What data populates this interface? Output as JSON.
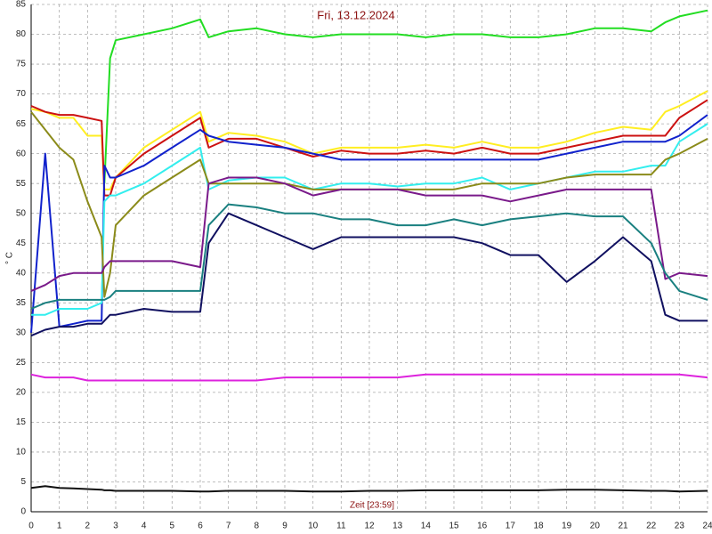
{
  "chart_data": {
    "type": "line",
    "title": "Fri, 13.12.2024",
    "x_label": "Zeit [23:59]",
    "y_label": "° C",
    "xlim": [
      0,
      24
    ],
    "ylim": [
      0,
      85
    ],
    "xticks": [
      0,
      1,
      2,
      3,
      4,
      5,
      6,
      7,
      8,
      9,
      10,
      11,
      12,
      13,
      14,
      15,
      16,
      17,
      18,
      19,
      20,
      21,
      22,
      23,
      24
    ],
    "yticks": [
      0,
      5,
      10,
      15,
      20,
      25,
      30,
      35,
      40,
      45,
      50,
      55,
      60,
      65,
      70,
      75,
      80,
      85
    ],
    "grid": true,
    "x": [
      0,
      0.5,
      1,
      1.5,
      2,
      2.5,
      2.6,
      2.8,
      3,
      4,
      5,
      6,
      6.3,
      7,
      8,
      9,
      10,
      11,
      12,
      13,
      14,
      15,
      16,
      17,
      18,
      19,
      20,
      21,
      22,
      22.5,
      23,
      24
    ],
    "series": [
      {
        "color": "#22dd22",
        "values": [
          null,
          null,
          null,
          null,
          null,
          null,
          55,
          76,
          79,
          80,
          81,
          82.5,
          79.5,
          80.5,
          81,
          80,
          79.5,
          80,
          80,
          80,
          79.5,
          80,
          80,
          79.5,
          79.5,
          80,
          81,
          81,
          80.5,
          82,
          83,
          84
        ]
      },
      {
        "color": "#ffee22",
        "values": [
          67.5,
          67,
          66,
          66,
          63,
          63,
          54,
          54,
          56,
          61,
          64,
          67,
          62,
          63.5,
          63,
          62,
          60,
          61,
          61,
          61,
          61.5,
          61,
          62,
          61,
          61,
          62,
          63.5,
          64.5,
          64,
          67,
          68,
          70.5
        ]
      },
      {
        "color": "#cc1111",
        "values": [
          68,
          67,
          66.5,
          66.5,
          66,
          65.5,
          53,
          53,
          56,
          60,
          63,
          66,
          61,
          62.5,
          62.5,
          61,
          59.5,
          60.5,
          60,
          60,
          60.5,
          60,
          61,
          60,
          60,
          61,
          62,
          63,
          63,
          63,
          66,
          69
        ]
      },
      {
        "color": "#1122cc",
        "values": [
          30,
          60,
          31,
          31.5,
          32,
          32,
          58,
          56,
          56,
          58,
          61,
          64,
          63,
          62,
          61.5,
          61,
          60,
          59,
          59,
          59,
          59,
          59,
          59,
          59,
          59,
          60,
          61,
          62,
          62,
          62,
          63,
          66.5
        ]
      },
      {
        "color": "#33eeee",
        "values": [
          33,
          33,
          34,
          34,
          34,
          35,
          52,
          53,
          53,
          55,
          58,
          61,
          54,
          55.5,
          56,
          56,
          54,
          55,
          55,
          54.5,
          55,
          55,
          56,
          54,
          55,
          56,
          57,
          57,
          58,
          58,
          62,
          65
        ]
      },
      {
        "color": "#8b8b1a",
        "values": [
          67,
          64,
          61,
          59,
          52,
          46,
          36,
          40,
          48,
          53,
          56,
          59,
          55,
          55,
          55,
          55,
          54,
          54,
          54,
          54,
          54,
          54,
          55,
          55,
          55,
          56,
          56.5,
          56.5,
          56.5,
          59,
          60,
          62.5
        ]
      },
      {
        "color": "#7a1a8a",
        "values": [
          37,
          38,
          39.5,
          40,
          40,
          40,
          41,
          42,
          42,
          42,
          42,
          41,
          55,
          56,
          56,
          55,
          53,
          54,
          54,
          54,
          53,
          53,
          53,
          52,
          53,
          54,
          54,
          54,
          54,
          39,
          40,
          39.5
        ]
      },
      {
        "color": "#1a8080",
        "values": [
          34,
          35,
          35.5,
          35.5,
          35.5,
          35.5,
          35.5,
          36,
          37,
          37,
          37,
          37,
          48,
          51.5,
          51,
          50,
          50,
          49,
          49,
          48,
          48,
          49,
          48,
          49,
          49.5,
          50,
          49.5,
          49.5,
          45,
          40,
          37,
          35.5
        ]
      },
      {
        "color": "#101060",
        "values": [
          29.5,
          30.5,
          31,
          31,
          31.5,
          31.5,
          32,
          33,
          33,
          34,
          33.5,
          33.5,
          45,
          50,
          48,
          46,
          44,
          46,
          46,
          46,
          46,
          46,
          45,
          43,
          43,
          38.5,
          42,
          46,
          42,
          33,
          32,
          32
        ]
      },
      {
        "color": "#dd22dd",
        "values": [
          23,
          22.5,
          22.5,
          22.5,
          22,
          22,
          22,
          22,
          22,
          22,
          22,
          22,
          22,
          22,
          22,
          22.5,
          22.5,
          22.5,
          22.5,
          22.5,
          23,
          23,
          23,
          23,
          23,
          23,
          23,
          23,
          23,
          23,
          23,
          22.5
        ]
      },
      {
        "color": "#111111",
        "values": [
          4,
          4.3,
          4,
          3.9,
          3.8,
          3.7,
          3.6,
          3.6,
          3.5,
          3.5,
          3.5,
          3.4,
          3.4,
          3.5,
          3.5,
          3.5,
          3.4,
          3.4,
          3.5,
          3.5,
          3.6,
          3.6,
          3.6,
          3.6,
          3.6,
          3.7,
          3.7,
          3.6,
          3.5,
          3.5,
          3.4,
          3.5
        ]
      }
    ]
  }
}
